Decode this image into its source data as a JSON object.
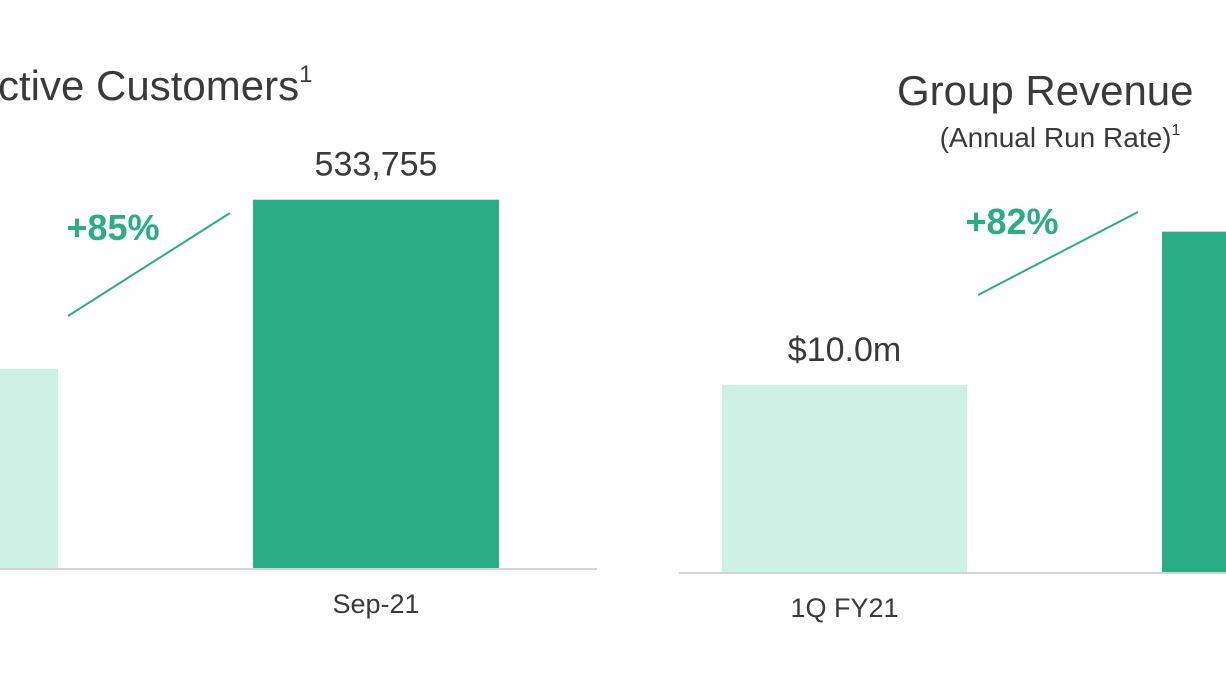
{
  "chart_data": [
    {
      "type": "bar",
      "title": "ctive Customers",
      "title_note": "1",
      "annotation": "+85%",
      "categories": [
        null,
        "Sep-21"
      ],
      "values": [
        288516,
        533755
      ],
      "value_labels": [
        null,
        "533,755"
      ],
      "colors": [
        "#cdf1e5",
        "#2aad85"
      ],
      "ylim": [
        0,
        600000
      ]
    },
    {
      "type": "bar",
      "title": "Group Revenue",
      "subtitle": "(Annual Run Rate)",
      "subtitle_note": "1",
      "annotation": "+82%",
      "categories": [
        "1Q FY21",
        null
      ],
      "values": [
        10.0,
        18.2
      ],
      "value_labels": [
        "$10.0m",
        null
      ],
      "colors": [
        "#cdf1e5",
        "#2aad85"
      ],
      "ylim": [
        0,
        20
      ]
    }
  ]
}
